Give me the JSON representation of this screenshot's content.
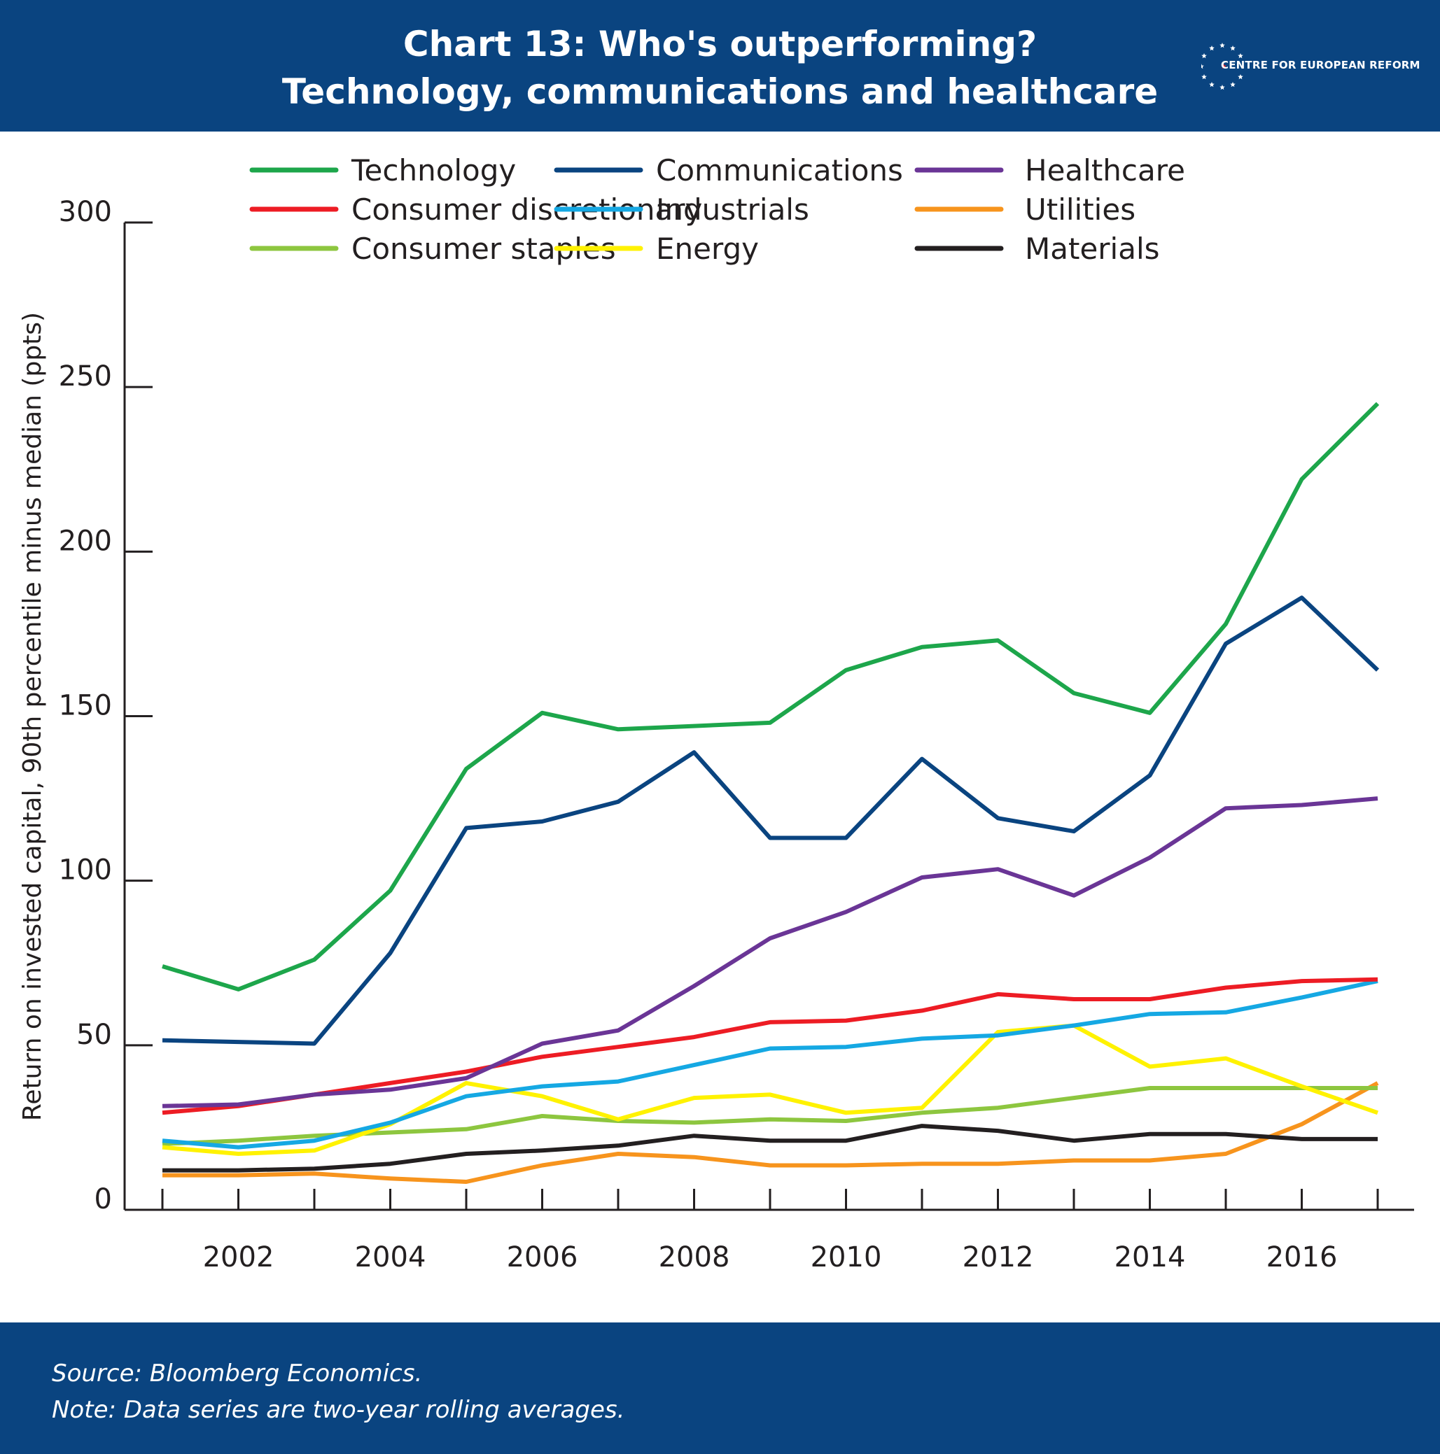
{
  "header": {
    "title_line1": "Chart 13: Who's outperforming?",
    "title_line2": "Technology, communications and healthcare",
    "logo_text": "CENTRE FOR EUROPEAN REFORM",
    "logo_icon": "eu-star-ring-icon"
  },
  "footer": {
    "source": "Source: Bloomberg Economics.",
    "note": "Note: Data series are two-year rolling averages."
  },
  "chart_data": {
    "type": "line",
    "title": "Chart 13: Who's outperforming? Technology, communications and healthcare",
    "xlabel": "",
    "ylabel": "Return on invested capital, 90th percentile minus median (ppts)",
    "ylim": [
      0,
      300
    ],
    "yticks": [
      0,
      50,
      100,
      150,
      200,
      250,
      300
    ],
    "xlim": [
      2001,
      2017
    ],
    "xticks": [
      2002,
      2004,
      2006,
      2008,
      2010,
      2012,
      2014,
      2016
    ],
    "grid": false,
    "legend_position": "top",
    "x": [
      2001,
      2002,
      2003,
      2004,
      2005,
      2006,
      2007,
      2008,
      2009,
      2010,
      2011,
      2012,
      2013,
      2014,
      2015,
      2016,
      2017
    ],
    "series": [
      {
        "name": "Technology",
        "color": "#1da64b",
        "values": [
          74,
          67,
          76,
          97,
          134,
          151,
          146,
          147,
          148,
          164,
          171,
          173,
          157,
          151,
          178,
          222,
          245
        ]
      },
      {
        "name": "Communications",
        "color": "#0a4480",
        "values": [
          51.5,
          51,
          50.5,
          78,
          116,
          118,
          124,
          139,
          113,
          113,
          137,
          119,
          115,
          132,
          172,
          186,
          164
        ]
      },
      {
        "name": "Healthcare",
        "color": "#6a3596",
        "values": [
          31.5,
          32,
          35,
          36.5,
          40,
          50.5,
          54.5,
          68,
          82.5,
          90.5,
          101,
          103.5,
          95.5,
          107,
          122,
          123,
          125
        ]
      },
      {
        "name": "Consumer discretionary",
        "color": "#ed1c24",
        "values": [
          29.5,
          31.5,
          35,
          38.5,
          42,
          46.5,
          49.5,
          52.5,
          57,
          57.5,
          60.5,
          65.5,
          64,
          64,
          67.5,
          69.5,
          70
        ]
      },
      {
        "name": "Industrials",
        "color": "#15a8e3",
        "values": [
          21,
          19,
          21,
          26.5,
          34.5,
          37.5,
          39,
          44,
          49,
          49.5,
          52,
          53,
          56,
          59.5,
          60,
          64.5,
          69.5
        ]
      },
      {
        "name": "Utilities",
        "color": "#f7941d",
        "values": [
          10.5,
          10.5,
          11,
          9.5,
          8.5,
          13.5,
          17,
          16,
          13.5,
          13.5,
          14,
          14,
          15,
          15,
          17,
          26,
          38.5
        ]
      },
      {
        "name": "Consumer staples",
        "color": "#8dc63f",
        "values": [
          20,
          21,
          22.5,
          23.5,
          24.5,
          28.5,
          27,
          26.5,
          27.5,
          27,
          29.5,
          31,
          34,
          37,
          37,
          37,
          37
        ]
      },
      {
        "name": "Energy",
        "color": "#fff200",
        "values": [
          19,
          17,
          18,
          26,
          38.5,
          34.5,
          27.5,
          34,
          35,
          29.5,
          31,
          54,
          56,
          43.5,
          46,
          37.5,
          29.5
        ]
      },
      {
        "name": "Materials",
        "color": "#231f20",
        "values": [
          12,
          12,
          12.5,
          14,
          17,
          18,
          19.5,
          22.5,
          21,
          21,
          25.5,
          24,
          21,
          23,
          23,
          21.5,
          21.5
        ]
      }
    ]
  }
}
